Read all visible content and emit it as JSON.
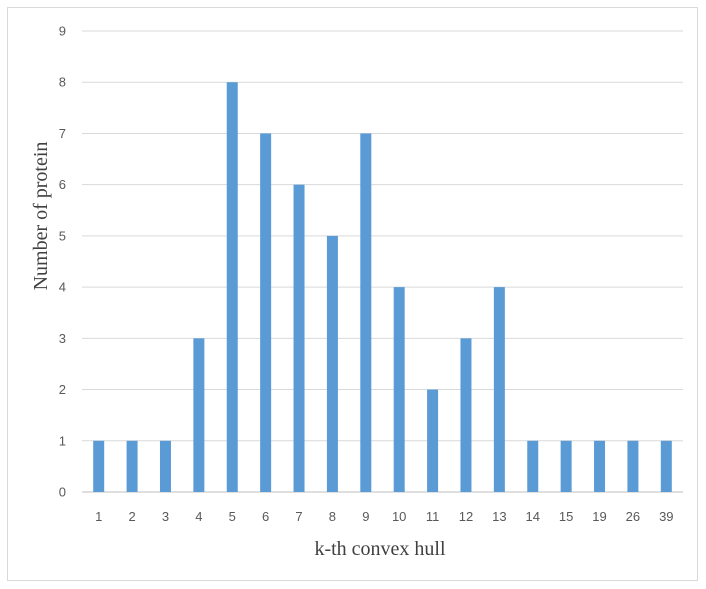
{
  "chart_data": {
    "type": "bar",
    "title": "",
    "xlabel": "k-th convex hull",
    "ylabel": "Number of protein",
    "categories": [
      "1",
      "2",
      "3",
      "4",
      "5",
      "6",
      "7",
      "8",
      "9",
      "10",
      "11",
      "12",
      "13",
      "14",
      "15",
      "19",
      "26",
      "39"
    ],
    "values": [
      1,
      1,
      1,
      3,
      8,
      7,
      6,
      5,
      7,
      4,
      2,
      3,
      4,
      1,
      1,
      1,
      1,
      1
    ],
    "ylim": [
      0,
      9
    ],
    "yticks": [
      "0",
      "1",
      "2",
      "3",
      "4",
      "5",
      "6",
      "7",
      "8",
      "9"
    ],
    "grid": true,
    "bar_color": "#5b9bd5",
    "grid_color": "#d9d9d9",
    "legend": "none"
  }
}
